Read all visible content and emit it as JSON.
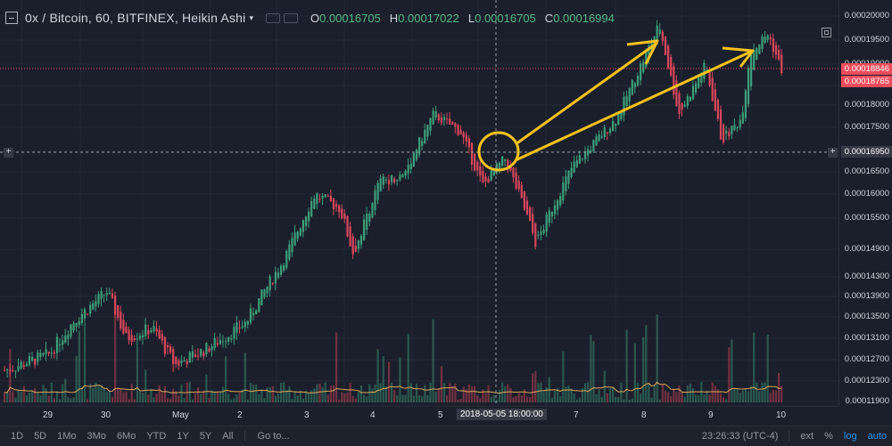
{
  "header": {
    "title": "0x / Bitcoin, 60, BITFINEX, Heikin Ashi",
    "ohlc": [
      {
        "label": "O",
        "value": "0.00016705"
      },
      {
        "label": "H",
        "value": "0.00017022"
      },
      {
        "label": "L",
        "value": "0.00016705"
      },
      {
        "label": "C",
        "value": "0.00016994"
      }
    ]
  },
  "price_axis": {
    "ticks": [
      "0.00020000",
      "0.00019500",
      "0.00019000",
      "0.00018500",
      "0.00018000",
      "0.00017500",
      "0.00017000",
      "0.00016500",
      "0.00016000",
      "0.00015500",
      "0.00014900",
      "0.00014300",
      "0.00013900",
      "0.00013500",
      "0.00013100",
      "0.00012700",
      "0.00012300",
      "0.00011900"
    ],
    "last_price_tags": [
      "0.00018846",
      "0.00018765"
    ],
    "crosshair_price": "0.00016950"
  },
  "time_axis": {
    "labels": [
      "29",
      "30",
      "May",
      "2",
      "3",
      "4",
      "5",
      "7",
      "8",
      "9",
      "10"
    ],
    "crosshair_time": "2018-05-05 18:00:00"
  },
  "bottom_bar": {
    "ranges": [
      "1D",
      "5D",
      "1Mo",
      "3Mo",
      "6Mo",
      "YTD",
      "1Y",
      "5Y",
      "All"
    ],
    "goto_label": "Go to...",
    "clock": "23:26:33 (UTC-4)",
    "ext_label": "ext",
    "percent_label": "%",
    "log_label": "log",
    "auto_label": "auto"
  },
  "colors": {
    "up": "#3d9e7a",
    "down": "#d9475b",
    "annotation": "#f7c21b",
    "background": "#1b1f2b"
  },
  "chart_data": {
    "type": "candlestick",
    "style": "Heikin Ashi",
    "ylim": [
      0.000119,
      0.0002
    ],
    "x": [
      "29",
      "30",
      "May",
      "2",
      "3",
      "4",
      "5",
      "7",
      "8",
      "9",
      "10"
    ],
    "close_trend": [
      0.000128,
      0.000139,
      0.000127,
      0.000133,
      0.000157,
      0.000169,
      0.000177,
      0.000166,
      0.000196,
      0.000173,
      0.00019
    ],
    "last_close": 0.00018765
  }
}
